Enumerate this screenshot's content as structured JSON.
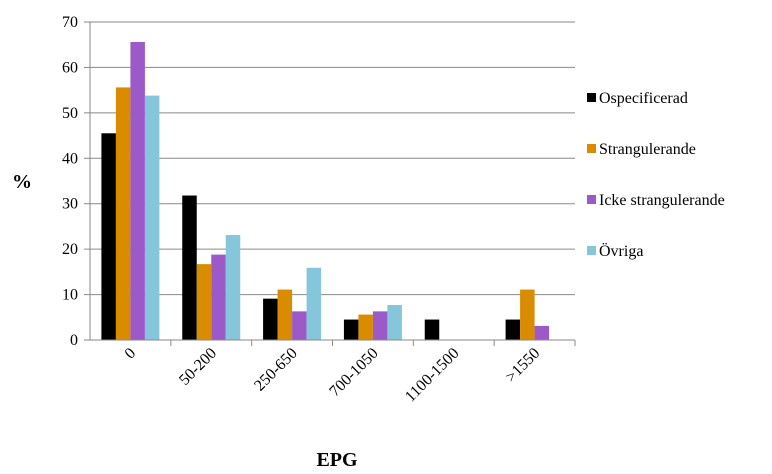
{
  "chart_data": {
    "type": "bar",
    "title": "",
    "xlabel": "EPG",
    "ylabel": "%",
    "categories": [
      "0",
      "50-200",
      "250-650",
      "700-1050",
      "1100-1500",
      ">1550"
    ],
    "ylim": [
      0,
      70
    ],
    "yticks": [
      0,
      10,
      20,
      30,
      40,
      50,
      60,
      70
    ],
    "grid": "horizontal",
    "legend_position": "right",
    "series": [
      {
        "name": "Ospecificerad",
        "color": "#000000",
        "values": [
          45.5,
          31.8,
          9.1,
          4.5,
          4.5,
          4.5
        ]
      },
      {
        "name": "Strangulerande",
        "color": "#D98C00",
        "values": [
          55.6,
          16.7,
          11.1,
          5.6,
          0,
          11.1
        ]
      },
      {
        "name": "Icke strangulerande",
        "color": "#9C59C8",
        "values": [
          65.6,
          18.8,
          6.3,
          6.3,
          0,
          3.1
        ]
      },
      {
        "name": "Övriga",
        "color": "#86C6DA",
        "values": [
          53.8,
          23.1,
          15.9,
          7.7,
          0,
          0
        ]
      }
    ]
  }
}
